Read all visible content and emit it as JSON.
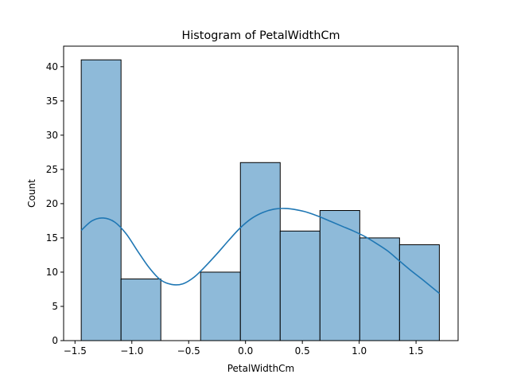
{
  "chart_data": {
    "type": "bar",
    "title": "Histogram of PetalWidthCm",
    "xlabel": "PetalWidthCm",
    "ylabel": "Count",
    "xlim": [
      -1.6,
      1.87
    ],
    "ylim": [
      0,
      43
    ],
    "bin_edges": [
      -1.445,
      -1.095,
      -0.745,
      -0.395,
      -0.045,
      0.305,
      0.655,
      1.005,
      1.355,
      1.705
    ],
    "values": [
      41,
      9,
      0,
      10,
      26,
      16,
      19,
      15,
      14
    ],
    "x_ticks": [
      -1.5,
      -1.0,
      -0.5,
      0.0,
      0.5,
      1.0,
      1.5
    ],
    "x_tick_labels": [
      "−1.5",
      "−1.0",
      "−0.5",
      "0.0",
      "0.5",
      "1.0",
      "1.5"
    ],
    "y_ticks": [
      0,
      5,
      10,
      15,
      20,
      25,
      30,
      35,
      40
    ],
    "y_tick_labels": [
      "0",
      "5",
      "10",
      "15",
      "20",
      "25",
      "30",
      "35",
      "40"
    ],
    "kde_x": [
      -1.445,
      -1.35,
      -1.25,
      -1.15,
      -1.05,
      -0.95,
      -0.85,
      -0.75,
      -0.65,
      -0.55,
      -0.45,
      -0.35,
      -0.25,
      -0.15,
      -0.05,
      0.05,
      0.15,
      0.25,
      0.35,
      0.45,
      0.55,
      0.65,
      0.75,
      0.85,
      0.95,
      1.05,
      1.15,
      1.25,
      1.35,
      1.45,
      1.55,
      1.705
    ],
    "kde_y": [
      16.1,
      17.5,
      17.9,
      17.3,
      15.6,
      13.1,
      10.7,
      8.9,
      8.2,
      8.3,
      9.3,
      10.9,
      12.7,
      14.6,
      16.4,
      17.8,
      18.7,
      19.2,
      19.3,
      19.1,
      18.7,
      18.1,
      17.4,
      16.7,
      16.0,
      15.2,
      14.2,
      13.1,
      11.7,
      10.3,
      9.0,
      6.9
    ],
    "grid": false,
    "bar_color": "#8ebad9",
    "bar_edge_color": "#000000",
    "kde_color": "#1f77b4"
  }
}
